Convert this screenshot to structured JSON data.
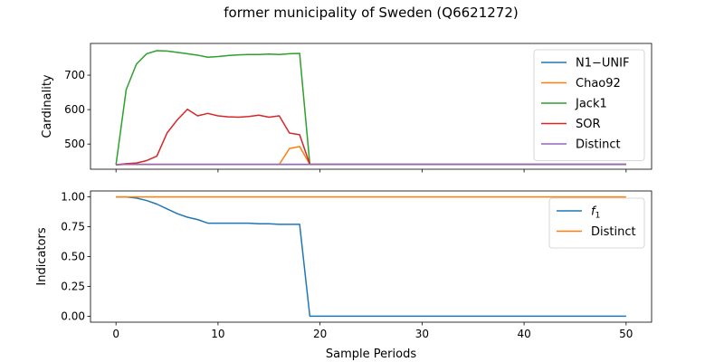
{
  "figure": {
    "title": "former municipality of Sweden (Q6621272)",
    "xlabel": "Sample Periods"
  },
  "chart_data": [
    {
      "type": "line",
      "ylabel": "Cardinality",
      "xlim": [
        -2.5,
        52.5
      ],
      "ylim": [
        427,
        792
      ],
      "xticks": [
        0,
        10,
        20,
        30,
        40,
        50
      ],
      "yticks": [
        500,
        600,
        700
      ],
      "grid": false,
      "legend_position": "top-right",
      "x": [
        0,
        1,
        2,
        3,
        4,
        5,
        6,
        7,
        8,
        9,
        10,
        11,
        12,
        13,
        14,
        15,
        16,
        17,
        18,
        19,
        20,
        21,
        22,
        23,
        24,
        25,
        26,
        27,
        28,
        29,
        30,
        31,
        32,
        33,
        34,
        35,
        36,
        37,
        38,
        39,
        40,
        41,
        42,
        43,
        44,
        45,
        46,
        47,
        48,
        49,
        50
      ],
      "series": [
        {
          "name": "N1−UNIF",
          "color": "#1f77b4",
          "values": [
            440,
            441,
            441,
            441,
            441,
            441,
            441,
            441,
            441,
            441,
            441,
            441,
            441,
            441,
            441,
            441,
            441,
            441,
            441,
            441,
            441,
            441,
            441,
            441,
            441,
            441,
            441,
            441,
            441,
            441,
            441,
            441,
            441,
            441,
            441,
            441,
            441,
            441,
            441,
            441,
            441,
            441,
            441,
            441,
            441,
            441,
            441,
            441,
            441,
            441,
            441
          ]
        },
        {
          "name": "Chao92",
          "color": "#ff7f0e",
          "values": [
            440,
            441,
            441,
            441,
            441,
            441,
            441,
            441,
            441,
            441,
            441,
            441,
            441,
            441,
            441,
            441,
            441,
            487,
            493,
            441,
            441,
            441,
            441,
            441,
            441,
            441,
            441,
            441,
            441,
            441,
            441,
            441,
            441,
            441,
            441,
            441,
            441,
            441,
            441,
            441,
            441,
            441,
            441,
            441,
            441,
            441,
            441,
            441,
            441,
            441,
            441
          ]
        },
        {
          "name": "Jack1",
          "color": "#2ca02c",
          "values": [
            440,
            658,
            732,
            762,
            771,
            770,
            766,
            762,
            758,
            752,
            754,
            757,
            759,
            760,
            760,
            761,
            760,
            762,
            763,
            441,
            441,
            441,
            441,
            441,
            441,
            441,
            441,
            441,
            441,
            441,
            441,
            441,
            441,
            441,
            441,
            441,
            441,
            441,
            441,
            441,
            441,
            441,
            441,
            441,
            441,
            441,
            441,
            441,
            441,
            441,
            441
          ]
        },
        {
          "name": "SOR",
          "color": "#d62728",
          "values": [
            440,
            443,
            445,
            452,
            465,
            532,
            570,
            601,
            582,
            589,
            582,
            579,
            578,
            580,
            584,
            578,
            582,
            532,
            527,
            441,
            441,
            441,
            441,
            441,
            441,
            441,
            441,
            441,
            441,
            441,
            441,
            441,
            441,
            441,
            441,
            441,
            441,
            441,
            441,
            441,
            441,
            441,
            441,
            441,
            441,
            441,
            441,
            441,
            441,
            441,
            441
          ]
        },
        {
          "name": "Distinct",
          "color": "#9467bd",
          "values": [
            440,
            441,
            441,
            441,
            441,
            441,
            441,
            441,
            441,
            441,
            441,
            441,
            441,
            441,
            441,
            441,
            441,
            441,
            441,
            441,
            441,
            441,
            441,
            441,
            441,
            441,
            441,
            441,
            441,
            441,
            441,
            441,
            441,
            441,
            441,
            441,
            441,
            441,
            441,
            441,
            441,
            441,
            441,
            441,
            441,
            441,
            441,
            441,
            441,
            441,
            441
          ]
        }
      ]
    },
    {
      "type": "line",
      "ylabel": "Indicators",
      "xlim": [
        -2.5,
        52.5
      ],
      "ylim": [
        -0.05,
        1.05
      ],
      "xticks": [
        0,
        10,
        20,
        30,
        40,
        50
      ],
      "yticks": [
        0.0,
        0.25,
        0.5,
        0.75,
        1.0
      ],
      "ytick_labels": [
        "0.00",
        "0.25",
        "0.50",
        "0.75",
        "1.00"
      ],
      "grid": false,
      "legend_position": "top-right",
      "x": [
        0,
        1,
        2,
        3,
        4,
        5,
        6,
        7,
        8,
        9,
        10,
        11,
        12,
        13,
        14,
        15,
        16,
        17,
        18,
        19,
        20,
        21,
        22,
        23,
        24,
        25,
        26,
        27,
        28,
        29,
        30,
        31,
        32,
        33,
        34,
        35,
        36,
        37,
        38,
        39,
        40,
        41,
        42,
        43,
        44,
        45,
        46,
        47,
        48,
        49,
        50
      ],
      "series": [
        {
          "name": "f",
          "name_sub": "1",
          "color": "#1f77b4",
          "values": [
            1.0,
            1.0,
            0.99,
            0.97,
            0.94,
            0.9,
            0.86,
            0.83,
            0.81,
            0.78,
            0.78,
            0.78,
            0.78,
            0.78,
            0.775,
            0.775,
            0.77,
            0.77,
            0.77,
            0.0,
            0.0,
            0.0,
            0.0,
            0.0,
            0.0,
            0.0,
            0.0,
            0.0,
            0.0,
            0.0,
            0.0,
            0.0,
            0.0,
            0.0,
            0.0,
            0.0,
            0.0,
            0.0,
            0.0,
            0.0,
            0.0,
            0.0,
            0.0,
            0.0,
            0.0,
            0.0,
            0.0,
            0.0,
            0.0,
            0.0,
            0.0
          ]
        },
        {
          "name": "Distinct",
          "color": "#ff7f0e",
          "values": [
            1.0,
            1.0,
            1.0,
            1.0,
            1.0,
            1.0,
            1.0,
            1.0,
            1.0,
            1.0,
            1.0,
            1.0,
            1.0,
            1.0,
            1.0,
            1.0,
            1.0,
            1.0,
            1.0,
            1.0,
            1.0,
            1.0,
            1.0,
            1.0,
            1.0,
            1.0,
            1.0,
            1.0,
            1.0,
            1.0,
            1.0,
            1.0,
            1.0,
            1.0,
            1.0,
            1.0,
            1.0,
            1.0,
            1.0,
            1.0,
            1.0,
            1.0,
            1.0,
            1.0,
            1.0,
            1.0,
            1.0,
            1.0,
            1.0,
            1.0,
            1.0
          ]
        }
      ]
    }
  ]
}
